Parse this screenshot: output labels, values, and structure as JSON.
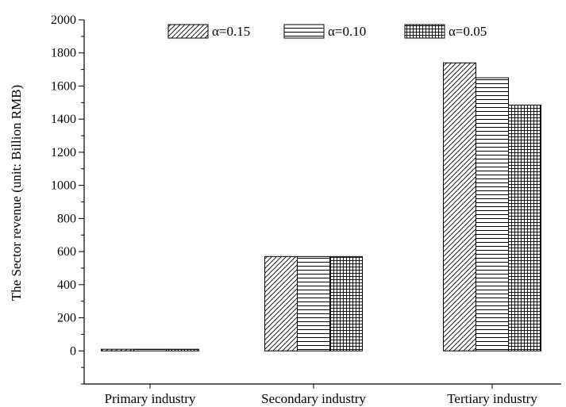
{
  "chart_data": {
    "type": "bar",
    "title": "",
    "xlabel": "",
    "ylabel": "The Sector revenue (unit: Billion RMB)",
    "categories": [
      "Primary industry",
      "Secondary industry",
      "Tertiary industry"
    ],
    "series": [
      {
        "name": "α=0.15",
        "pattern": "diagonal",
        "values": [
          10,
          570,
          1740
        ]
      },
      {
        "name": "α=0.10",
        "pattern": "horizontal",
        "values": [
          10,
          570,
          1650
        ]
      },
      {
        "name": "α=0.05",
        "pattern": "grid",
        "values": [
          10,
          570,
          1485
        ]
      }
    ],
    "ylim": [
      -200,
      2000
    ],
    "yticks": [
      0,
      200,
      400,
      600,
      800,
      1000,
      1200,
      1400,
      1600,
      1800,
      2000
    ],
    "grid": false,
    "legend_position": "top"
  }
}
